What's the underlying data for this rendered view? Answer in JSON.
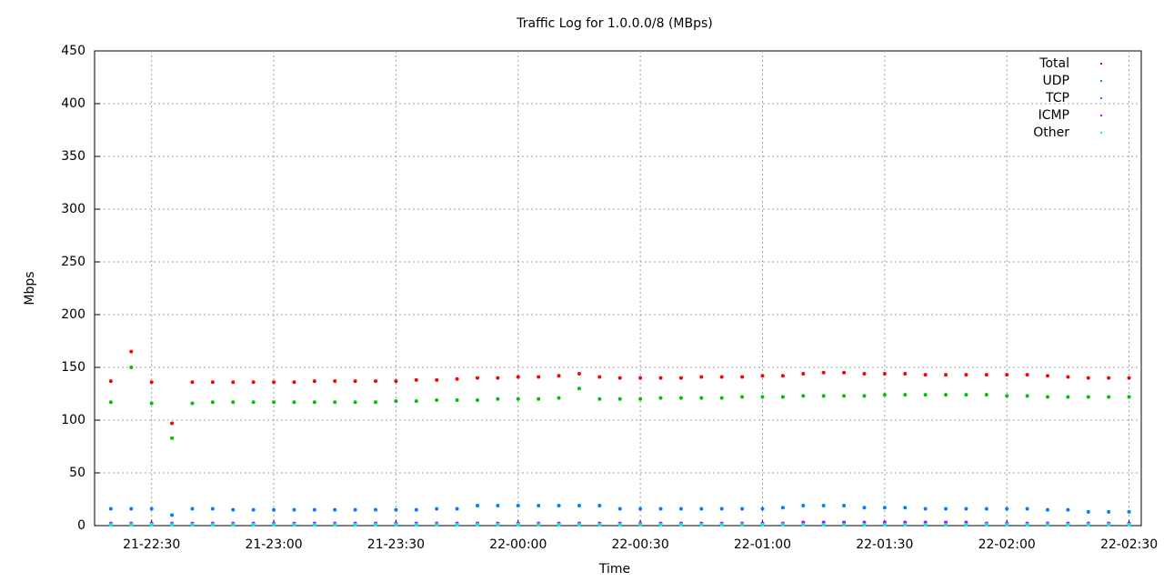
{
  "chart_data": {
    "type": "scatter",
    "title": "Traffic Log for 1.0.0.0/8 (MBps)",
    "x_label": "Time",
    "y_label": "Mbps",
    "x": [
      "21-22:20",
      "21-22:25",
      "21-22:30",
      "21-22:35",
      "21-22:40",
      "21-22:45",
      "21-22:50",
      "21-22:55",
      "21-23:00",
      "21-23:05",
      "21-23:10",
      "21-23:15",
      "21-23:20",
      "21-23:25",
      "21-23:30",
      "21-23:35",
      "21-23:40",
      "21-23:45",
      "21-23:50",
      "21-23:55",
      "22-00:00",
      "22-00:05",
      "22-00:10",
      "22-00:15",
      "22-00:20",
      "22-00:25",
      "22-00:30",
      "22-00:35",
      "22-00:40",
      "22-00:45",
      "22-00:50",
      "22-00:55",
      "22-01:00",
      "22-01:05",
      "22-01:10",
      "22-01:15",
      "22-01:20",
      "22-01:25",
      "22-01:30",
      "22-01:35",
      "22-01:40",
      "22-01:45",
      "22-01:50",
      "22-01:55",
      "22-02:00",
      "22-02:05",
      "22-02:10",
      "22-02:15",
      "22-02:20",
      "22-02:25",
      "22-02:30"
    ],
    "series": [
      {
        "name": "Total",
        "color": "#ff0000",
        "values": [
          137,
          165,
          136,
          97,
          136,
          136,
          136,
          136,
          136,
          136,
          137,
          137,
          137,
          137,
          137,
          138,
          138,
          139,
          140,
          140,
          141,
          141,
          142,
          144,
          141,
          140,
          140,
          140,
          140,
          141,
          141,
          141,
          142,
          142,
          144,
          145,
          145,
          144,
          144,
          144,
          143,
          143,
          143,
          143,
          143,
          143,
          142,
          141,
          140,
          140,
          140
        ]
      },
      {
        "name": "UDP",
        "color": "#00c000",
        "values": [
          117,
          150,
          116,
          83,
          116,
          117,
          117,
          117,
          117,
          117,
          117,
          117,
          117,
          117,
          118,
          118,
          119,
          119,
          119,
          120,
          120,
          120,
          121,
          130,
          120,
          120,
          120,
          121,
          121,
          121,
          121,
          122,
          122,
          122,
          123,
          123,
          123,
          123,
          124,
          124,
          124,
          124,
          124,
          124,
          123,
          123,
          122,
          122,
          122,
          122,
          122
        ]
      },
      {
        "name": "TCP",
        "color": "#0080ff",
        "values": [
          16,
          16,
          16,
          10,
          16,
          16,
          15,
          15,
          15,
          15,
          15,
          15,
          15,
          15,
          15,
          15,
          16,
          16,
          19,
          19,
          19,
          19,
          19,
          19,
          19,
          16,
          16,
          16,
          16,
          16,
          16,
          16,
          16,
          17,
          19,
          19,
          19,
          17,
          17,
          17,
          16,
          16,
          16,
          16,
          16,
          16,
          15,
          15,
          13,
          13,
          13
        ]
      },
      {
        "name": "ICMP",
        "color": "#c000ff",
        "values": [
          2,
          2,
          2,
          2,
          2,
          2,
          2,
          2,
          2,
          2,
          2,
          2,
          2,
          2,
          2,
          2,
          2,
          2,
          2,
          2,
          2,
          2,
          2,
          2,
          2,
          2,
          2,
          2,
          2,
          2,
          2,
          2,
          2,
          2,
          3,
          3,
          3,
          3,
          3,
          3,
          3,
          3,
          3,
          2,
          2,
          2,
          2,
          2,
          2,
          2,
          2
        ]
      },
      {
        "name": "Other",
        "color": "#00eeee",
        "values": [
          1,
          1,
          1,
          1,
          1,
          1,
          1,
          1,
          1,
          1,
          1,
          1,
          1,
          1,
          1,
          1,
          1,
          1,
          1,
          1,
          1,
          1,
          1,
          1,
          1,
          1,
          1,
          1,
          1,
          1,
          1,
          1,
          1,
          1,
          1,
          1,
          1,
          1,
          1,
          1,
          1,
          1,
          1,
          1,
          1,
          1,
          1,
          1,
          1,
          1,
          1
        ]
      }
    ],
    "xlim": [
      "21-22:16",
      "22-02:33"
    ],
    "xticks": [
      "21-22:30",
      "21-23:00",
      "21-23:30",
      "22-00:00",
      "22-00:30",
      "22-01:00",
      "22-01:30",
      "22-02:00",
      "22-02:30"
    ],
    "ylim": [
      0,
      450
    ],
    "yticks": [
      0,
      50,
      100,
      150,
      200,
      250,
      300,
      350,
      400,
      450
    ],
    "grid": true,
    "legend": "top-right"
  }
}
